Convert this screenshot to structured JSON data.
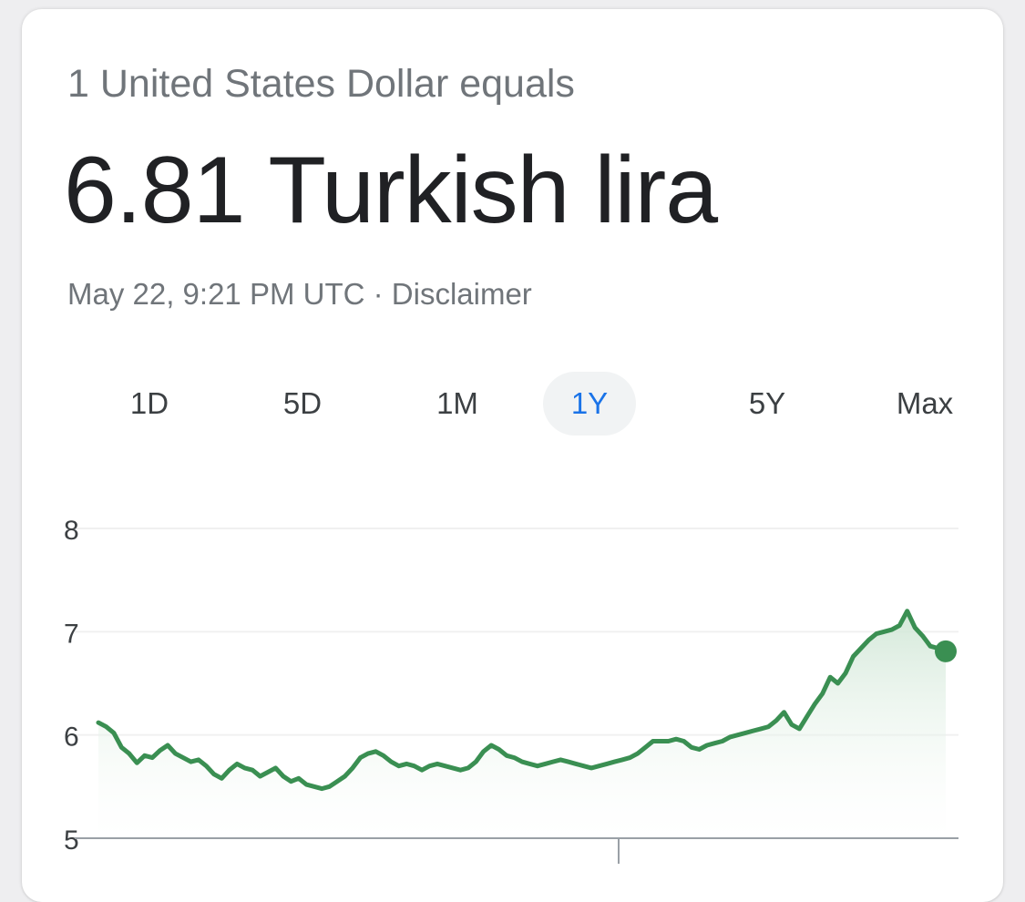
{
  "header": {
    "subtitle": "1 United States Dollar equals",
    "rate_text": "6.81 Turkish lira",
    "timestamp": "May 22, 9:21 PM UTC",
    "separator": " · ",
    "disclaimer_label": "Disclaimer"
  },
  "ranges": [
    {
      "label": "1D",
      "active": false
    },
    {
      "label": "5D",
      "active": false
    },
    {
      "label": "1M",
      "active": false
    },
    {
      "label": "1Y",
      "active": true
    },
    {
      "label": "5Y",
      "active": false
    },
    {
      "label": "Max",
      "active": false
    }
  ],
  "colors": {
    "line": "#3a8f52",
    "fill_top": "#cfe6d5",
    "fill_bottom": "#ffffff",
    "grid": "#f0f0f0",
    "axis": "#9aa0a6",
    "tick_text": "#3c4043",
    "active_range": "#1a73e8"
  },
  "chart_data": {
    "type": "line",
    "title": "",
    "xlabel": "",
    "ylabel": "",
    "ylim": [
      5,
      8
    ],
    "y_ticks": [
      "8",
      "7",
      "6",
      "5"
    ],
    "grid": true,
    "series": [
      {
        "values": [
          6.12,
          6.08,
          6.02,
          5.88,
          5.82,
          5.73,
          5.8,
          5.78,
          5.85,
          5.9,
          5.82,
          5.78,
          5.74,
          5.76,
          5.7,
          5.62,
          5.58,
          5.66,
          5.72,
          5.68,
          5.66,
          5.6,
          5.64,
          5.68,
          5.6,
          5.55,
          5.58,
          5.52,
          5.5,
          5.48,
          5.5,
          5.55,
          5.6,
          5.68,
          5.78,
          5.82,
          5.84,
          5.8,
          5.74,
          5.7,
          5.72,
          5.7,
          5.66,
          5.7,
          5.72,
          5.7,
          5.68,
          5.66,
          5.68,
          5.74,
          5.84,
          5.9,
          5.86,
          5.8,
          5.78,
          5.74,
          5.72,
          5.7,
          5.72,
          5.74,
          5.76,
          5.74,
          5.72,
          5.7,
          5.68,
          5.7,
          5.72,
          5.74,
          5.76,
          5.78,
          5.82,
          5.88,
          5.94,
          5.94,
          5.94,
          5.96,
          5.94,
          5.88,
          5.86,
          5.9,
          5.92,
          5.94,
          5.98,
          6.0,
          6.02,
          6.04,
          6.06,
          6.08,
          6.14,
          6.22,
          6.1,
          6.06,
          6.18,
          6.3,
          6.4,
          6.56,
          6.5,
          6.6,
          6.76,
          6.84,
          6.92,
          6.98,
          7.0,
          7.02,
          7.06,
          7.2,
          7.04,
          6.96,
          6.86,
          6.84,
          6.81
        ]
      }
    ],
    "last_point_marker": true
  }
}
